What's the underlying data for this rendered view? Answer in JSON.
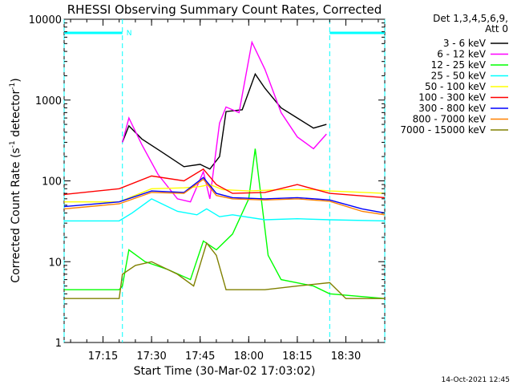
{
  "chart_data": {
    "type": "line",
    "title": "RHESSI Observing Summary Count Rates, Corrected",
    "xlabel": "Start Time (30-Mar-02 17:03:02)",
    "ylabel": "Corrected Count Rate (s",
    "ylabel_sup1": "-1",
    "ylabel_mid": " detector",
    "ylabel_sup2": "-1",
    "ylabel_end": ")",
    "ylog": true,
    "ylim": [
      1,
      10000
    ],
    "xlim_minutes": [
      "17:03",
      "18:42"
    ],
    "x_ticks": [
      "17:15",
      "17:30",
      "17:45",
      "18:00",
      "18:15",
      "18:30"
    ],
    "y_ticks": [
      "1",
      "10",
      "100",
      "1000",
      "10000"
    ],
    "legend_header": [
      "Det 1,3,4,5,6,9,",
      "Att 0"
    ],
    "legend_position": "right",
    "footer_timestamp": "14-Oct-2021 12:45",
    "marker_label": "N",
    "night_intervals": [
      [
        "17:03",
        "17:21"
      ],
      [
        "18:25",
        "18:42"
      ]
    ],
    "series": [
      {
        "name": "3 - 6 keV",
        "color": "#000000",
        "x": [
          "17:21",
          "17:23",
          "17:27",
          "17:33",
          "17:40",
          "17:45",
          "17:48",
          "17:51",
          "17:53",
          "17:58",
          "18:02",
          "18:05",
          "18:10",
          "18:15",
          "18:20",
          "18:24"
        ],
        "y": [
          300,
          480,
          330,
          230,
          150,
          160,
          140,
          200,
          720,
          760,
          2100,
          1400,
          800,
          600,
          450,
          500
        ]
      },
      {
        "name": "6 - 12 keV",
        "color": "#ff00ff",
        "x": [
          "17:21",
          "17:23",
          "17:27",
          "17:32",
          "17:38",
          "17:42",
          "17:46",
          "17:48",
          "17:51",
          "17:53",
          "17:57",
          "18:01",
          "18:05",
          "18:10",
          "18:15",
          "18:20",
          "18:24"
        ],
        "y": [
          300,
          600,
          280,
          120,
          60,
          55,
          130,
          60,
          520,
          820,
          700,
          5200,
          2400,
          700,
          350,
          250,
          380
        ]
      },
      {
        "name": "12 - 25 keV",
        "color": "#00ff00",
        "x": [
          "17:03",
          "17:20",
          "17:21",
          "17:23",
          "17:28",
          "17:35",
          "17:42",
          "17:46",
          "17:50",
          "17:55",
          "18:00",
          "18:02",
          "18:06",
          "18:10",
          "18:20",
          "18:25",
          "18:42"
        ],
        "y": [
          4.5,
          4.5,
          5,
          14,
          10,
          8,
          6,
          18,
          14,
          22,
          60,
          250,
          12,
          6,
          5,
          4,
          3.5
        ]
      },
      {
        "name": "25 - 50 keV",
        "color": "#00ffff",
        "x": [
          "17:03",
          "17:20",
          "17:24",
          "17:30",
          "17:38",
          "17:44",
          "17:47",
          "17:51",
          "17:55",
          "18:05",
          "18:15",
          "18:25",
          "18:42"
        ],
        "y": [
          32,
          32,
          40,
          60,
          42,
          38,
          45,
          36,
          38,
          33,
          34,
          33,
          32
        ]
      },
      {
        "name": "50 - 100 keV",
        "color": "#ffff00",
        "x": [
          "17:03",
          "17:20",
          "17:30",
          "17:40",
          "17:45",
          "17:48",
          "17:52",
          "18:00",
          "18:10",
          "18:20",
          "18:25",
          "18:42"
        ],
        "y": [
          55,
          55,
          80,
          82,
          85,
          90,
          78,
          75,
          78,
          78,
          75,
          70
        ]
      },
      {
        "name": "100 - 300 keV",
        "color": "#ff0000",
        "x": [
          "17:03",
          "17:20",
          "17:30",
          "17:40",
          "17:46",
          "17:50",
          "17:55",
          "18:05",
          "18:15",
          "18:25",
          "18:42"
        ],
        "y": [
          68,
          80,
          115,
          100,
          140,
          90,
          70,
          72,
          90,
          70,
          62
        ]
      },
      {
        "name": "300 - 800 keV",
        "color": "#0000ff",
        "x": [
          "17:03",
          "17:20",
          "17:30",
          "17:40",
          "17:46",
          "17:50",
          "17:55",
          "18:05",
          "18:15",
          "18:25",
          "18:35",
          "18:42"
        ],
        "y": [
          48,
          55,
          75,
          72,
          110,
          70,
          62,
          60,
          62,
          58,
          45,
          40
        ]
      },
      {
        "name": "800 - 7000 keV",
        "color": "#ff8000",
        "x": [
          "17:03",
          "17:20",
          "17:30",
          "17:40",
          "17:46",
          "17:50",
          "17:55",
          "18:05",
          "18:15",
          "18:25",
          "18:35",
          "18:42"
        ],
        "y": [
          45,
          52,
          72,
          70,
          105,
          66,
          60,
          58,
          60,
          56,
          42,
          38
        ]
      },
      {
        "name": "7000 - 15000 keV",
        "color": "#808000",
        "x": [
          "17:03",
          "17:20",
          "17:21",
          "17:25",
          "17:30",
          "17:38",
          "17:43",
          "17:47",
          "17:50",
          "17:53",
          "18:05",
          "18:15",
          "18:25",
          "18:30",
          "18:42"
        ],
        "y": [
          3.5,
          3.5,
          7,
          9,
          10,
          7,
          5,
          17,
          12,
          4.5,
          4.5,
          5,
          5.5,
          3.5,
          3.5
        ]
      }
    ]
  }
}
